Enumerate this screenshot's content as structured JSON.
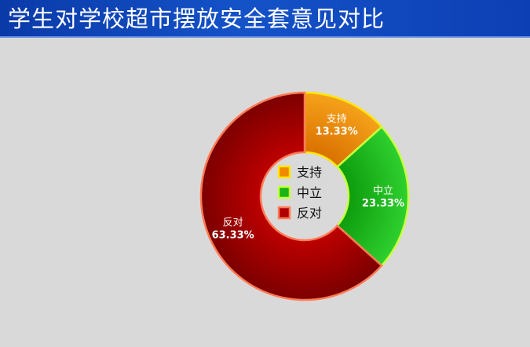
{
  "header": {
    "title": "学生对学校超市摆放安全套意见对比"
  },
  "chart_data": {
    "type": "pie",
    "title": "学生对学校超市摆放安全套意见对比",
    "donut": true,
    "categories": [
      "支持",
      "中立",
      "反对"
    ],
    "values": [
      13.33,
      23.33,
      63.33
    ],
    "percent_labels": [
      "13.33%",
      "23.33%",
      "63.33%"
    ],
    "colors": [
      "#ef8a00",
      "#17b517",
      "#b00000"
    ],
    "legend": "center"
  }
}
